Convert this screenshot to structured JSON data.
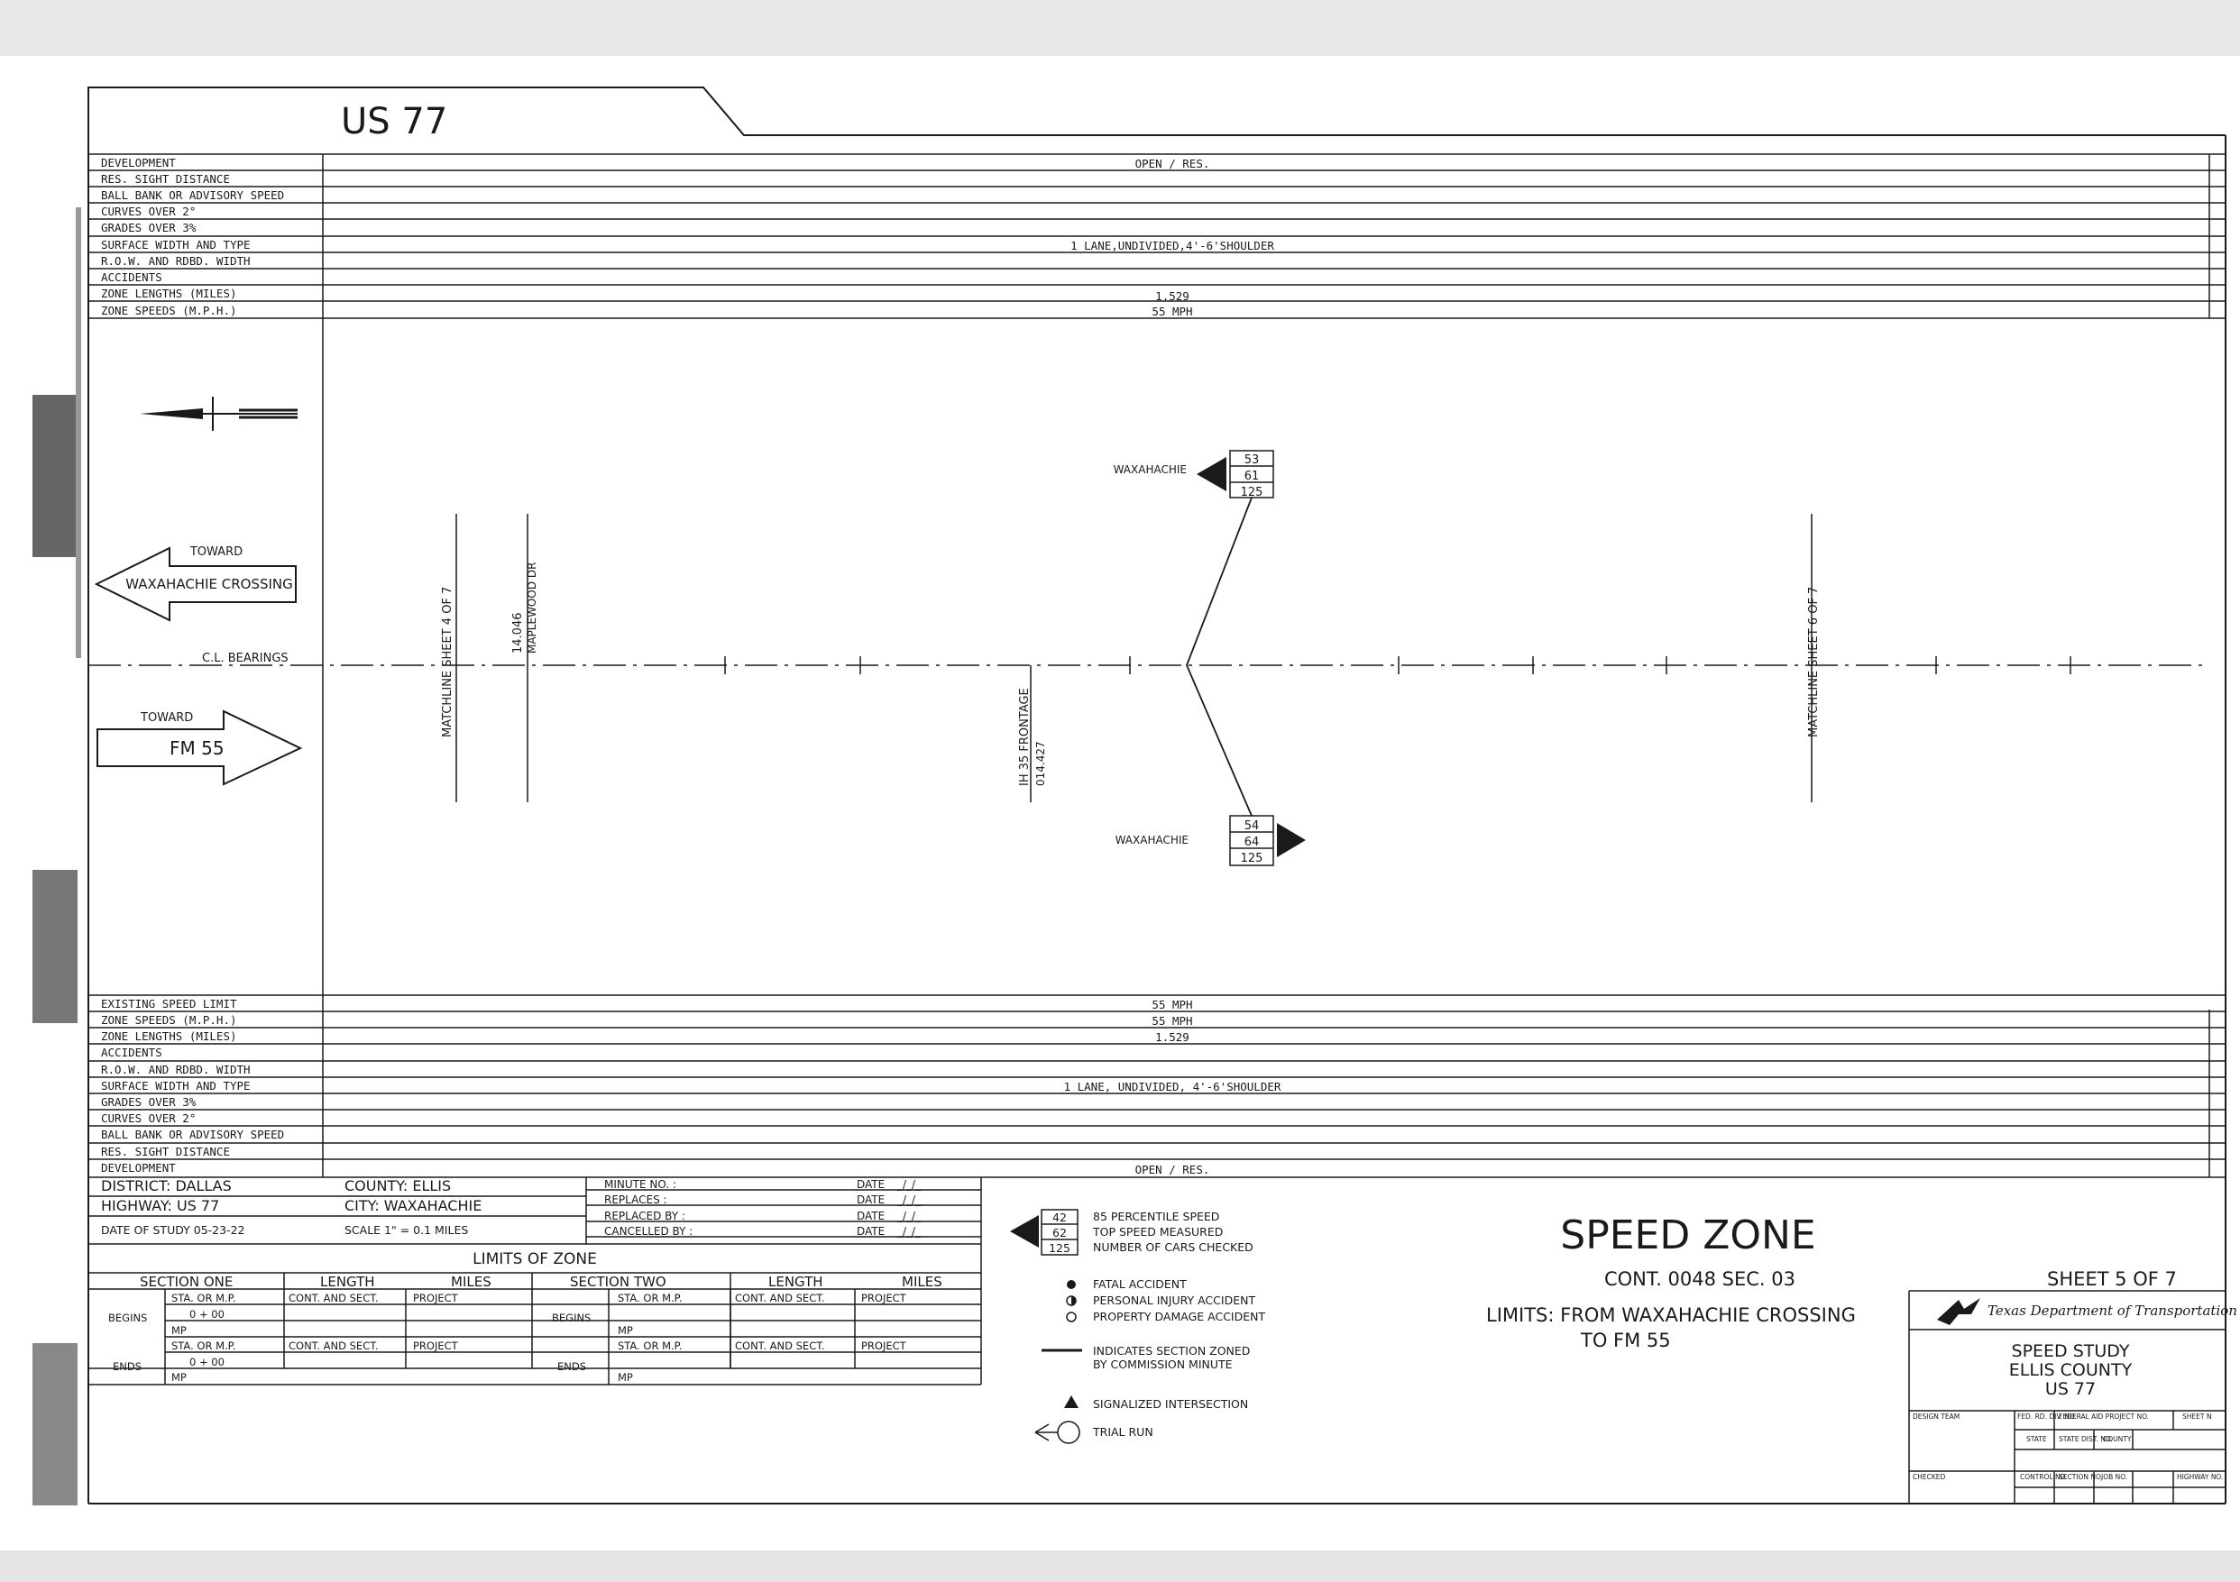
{
  "highway_title": "US 77",
  "top_rows": {
    "labels": [
      "DEVELOPMENT",
      "RES. SIGHT DISTANCE",
      "BALL BANK OR ADVISORY SPEED",
      "CURVES OVER 2°",
      "GRADES OVER 3%",
      "SURFACE WIDTH AND TYPE",
      "R.O.W. AND RDBD. WIDTH",
      "ACCIDENTS",
      "ZONE LENGTHS (MILES)",
      "ZONE SPEEDS (M.P.H.)"
    ],
    "values": {
      "development": "OPEN / RES.",
      "surface": "1 LANE,UNDIVIDED,4'-6'SHOULDER",
      "zone_length": "1.529",
      "zone_speed": "55 MPH"
    }
  },
  "bottom_rows": {
    "labels": [
      "EXISTING SPEED LIMIT",
      "ZONE SPEEDS (M.P.H.)",
      "ZONE LENGTHS (MILES)",
      "ACCIDENTS",
      "R.O.W. AND RDBD. WIDTH",
      "SURFACE WIDTH AND TYPE",
      "GRADES OVER 3%",
      "CURVES OVER 2°",
      "BALL BANK OR ADVISORY SPEED",
      "RES. SIGHT DISTANCE",
      "DEVELOPMENT"
    ],
    "values": {
      "existing_limit": "55 MPH",
      "zone_speed": "55 MPH",
      "zone_length": "1.529",
      "surface": "1 LANE, UNDIVIDED, 4'-6'SHOULDER",
      "development": "OPEN / RES."
    }
  },
  "diagram": {
    "toward_left_small": "TOWARD",
    "toward_left_big": "WAXAHACHIE CROSSING",
    "toward_right_small": "TOWARD",
    "toward_right_big": "FM 55",
    "cl_bearings": "C.L. BEARINGS",
    "matchline_left": "MATCHLINE SHEET 4 OF 7",
    "station_maplewood": "14.046",
    "maplewood": "MAPLEWOOD DR",
    "ih35": "IH 35 FRONTAGE",
    "ih35_station": "014.427",
    "matchline_right": "MATCHLINE SHEET 6 OF 7",
    "upper_run": {
      "town": "WAXAHACHIE",
      "values": [
        "53",
        "61",
        "125"
      ]
    },
    "lower_run": {
      "town": "WAXAHACHIE",
      "values": [
        "54",
        "64",
        "125"
      ]
    }
  },
  "info": {
    "district": "DISTRICT:  DALLAS",
    "county": "COUNTY:  ELLIS",
    "highway": "HIGHWAY: US 77",
    "city": "CITY:  WAXAHACHIE",
    "date_of_study": "DATE OF STUDY 05-23-22",
    "scale": "SCALE 1\" = 0.1 MILES",
    "minute_no": "MINUTE NO. :",
    "replaces": "REPLACES :",
    "replaced_by": "REPLACED BY :",
    "cancelled_by": "CANCELLED BY :",
    "date_label": "DATE",
    "date_blank": "_/_/_",
    "limits_of_zone": "LIMITS OF ZONE",
    "section_one": "SECTION ONE",
    "section_two": "SECTION TWO",
    "length": "LENGTH",
    "miles": "MILES",
    "sta_or_mp": "STA. OR M.P.",
    "cont_sect": "CONT. AND SECT.",
    "project": "PROJECT",
    "begins": "BEGINS",
    "ends": "ENDS",
    "sta_value": "0 + 00",
    "mp": "MP"
  },
  "legend": {
    "sample_values": [
      "42",
      "62",
      "125"
    ],
    "items": [
      "85 PERCENTILE SPEED",
      "TOP SPEED MEASURED",
      "NUMBER OF CARS CHECKED"
    ],
    "fatal": "FATAL ACCIDENT",
    "personal": "PERSONAL INJURY ACCIDENT",
    "property": "PROPERTY DAMAGE ACCIDENT",
    "zoned_1": "INDICATES SECTION ZONED",
    "zoned_2": "BY COMMISSION MINUTE",
    "signalized": "SIGNALIZED INTERSECTION",
    "trial_run": "TRIAL RUN"
  },
  "title_block": {
    "title": "SPEED ZONE",
    "cont": "CONT. 0048  SEC. 03",
    "limits_1": "LIMITS: FROM WAXAHACHIE CROSSING",
    "limits_2": "TO FM 55",
    "sheet": "SHEET  5 OF 7",
    "agency": "Texas Department of Transportation",
    "study_1": "SPEED STUDY",
    "study_2": "ELLIS COUNTY",
    "study_3": "US 77",
    "grid_design": "DESIGN TEAM",
    "grid_fed": "FED. RD. DIV. NO.",
    "grid_fap": "FEDERAL AID PROJECT NO.",
    "grid_sheet": "SHEET N",
    "grid_state": "STATE",
    "grid_dist": "STATE DIST. NO.",
    "grid_county": "COUNTY",
    "grid_checked": "CHECKED",
    "grid_control": "CONTROL NO.",
    "grid_section": "SECTION NO.",
    "grid_job": "JOB NO.",
    "grid_highway": "HIGHWAY NO."
  }
}
